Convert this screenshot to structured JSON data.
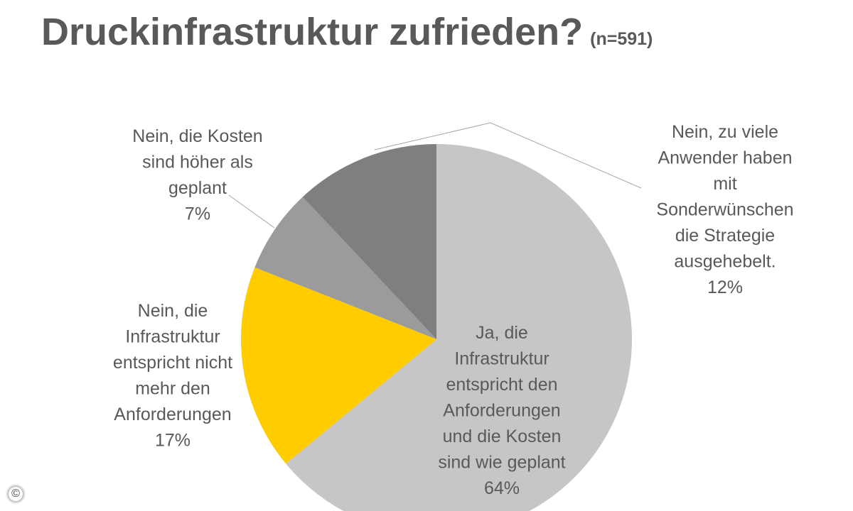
{
  "title": "Druckinfrastruktur zufrieden?",
  "subtitle": "(n=591)",
  "copyright_symbol": "©",
  "chart_data": {
    "type": "pie",
    "start_angle_deg": 0,
    "direction": "clockwise",
    "slices": [
      {
        "name": "Ja, die Infrastruktur entspricht den Anforderungen und die Kosten sind wie geplant",
        "value": 64,
        "pct_label": "64%",
        "label_lines": [
          "Ja, die",
          "Infrastruktur",
          "entspricht den",
          "Anforderungen",
          "und die Kosten",
          "sind wie geplant",
          "64%"
        ],
        "color": "#c6c6c6"
      },
      {
        "name": "Nein, die Infrastruktur entspricht nicht mehr den Anforderungen",
        "value": 17,
        "pct_label": "17%",
        "label_lines": [
          "Nein, die",
          "Infrastruktur",
          "entspricht nicht",
          "mehr den",
          "Anforderungen",
          "17%"
        ],
        "color": "#ffcc00"
      },
      {
        "name": "Nein, die Kosten sind höher als geplant",
        "value": 7,
        "pct_label": "7%",
        "label_lines": [
          "Nein, die Kosten",
          "sind höher als",
          "geplant",
          "7%"
        ],
        "color": "#9b9b9b"
      },
      {
        "name": "Nein, zu viele Anwender haben mit Sonderwünschen die Strategie ausgehebelt.",
        "value": 12,
        "pct_label": "12%",
        "label_lines": [
          "Nein, zu viele",
          "Anwender haben",
          "mit",
          "Sonderwünschen",
          "die Strategie",
          "ausgehebelt.",
          "12%"
        ],
        "color": "#7f7f7f"
      }
    ]
  }
}
